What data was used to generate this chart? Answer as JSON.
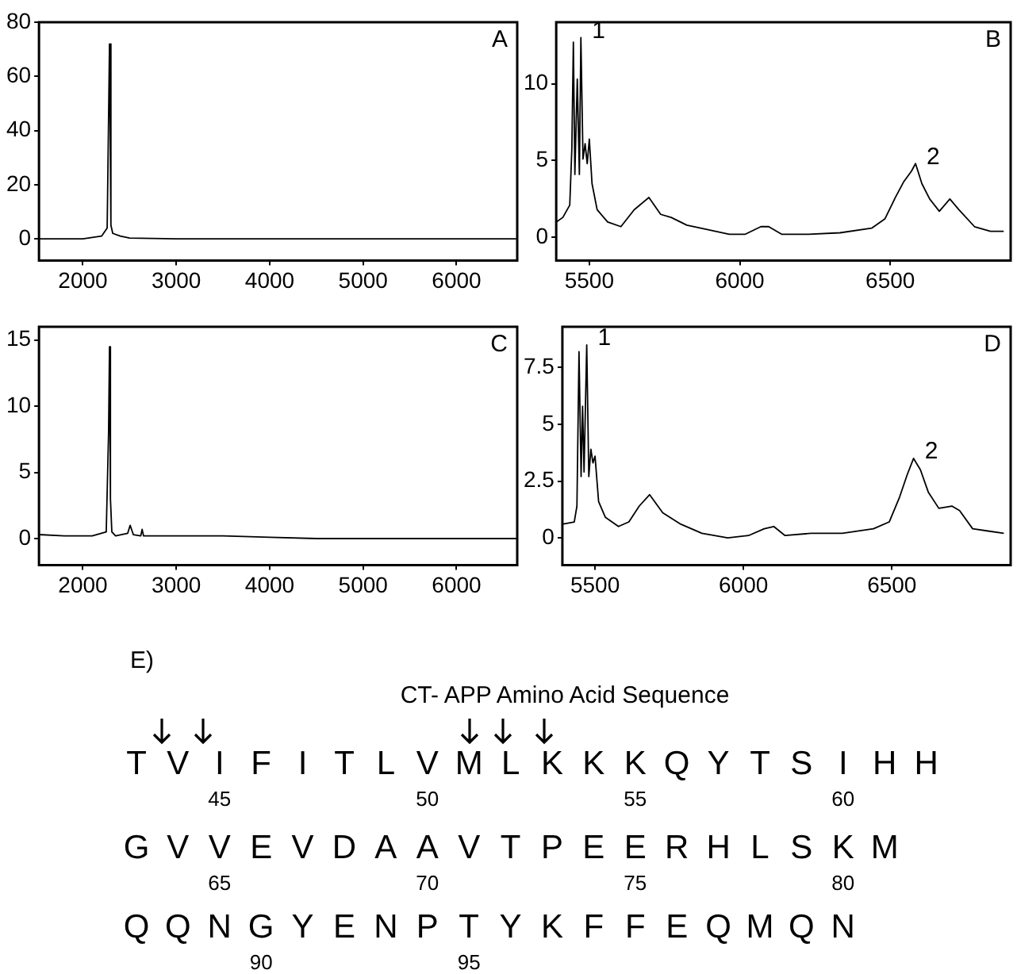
{
  "chart_data": [
    {
      "type": "line",
      "xlim": [
        1530,
        6650
      ],
      "ylim": [
        -8,
        80
      ],
      "xticks": [
        2000,
        3000,
        4000,
        5000,
        6000
      ],
      "yticks": [
        0,
        20,
        40,
        60,
        80
      ],
      "annotations": [
        "A"
      ],
      "series": [
        {
          "color": "#000000",
          "x": [
            1530,
            1800,
            2000,
            2200,
            2260,
            2285,
            2300,
            2320,
            2400,
            2500,
            3000,
            4000,
            5000,
            6000,
            6640
          ],
          "values": [
            0,
            0,
            0,
            1,
            4,
            72,
            5,
            2,
            1,
            0.3,
            0,
            0,
            0,
            0,
            0
          ]
        }
      ]
    },
    {
      "type": "line",
      "xlim": [
        5390,
        6900
      ],
      "ylim": [
        -1.5,
        14
      ],
      "xticks": [
        5500,
        6000,
        6500
      ],
      "yticks": [
        0,
        5,
        10
      ],
      "annotations": [
        "B",
        {
          "text": "1",
          "x": 5472,
          "y": 13
        },
        {
          "text": "2",
          "x": 6584,
          "y": 4.8
        }
      ],
      "series": [
        {
          "color": "#000000",
          "x": [
            5390,
            5412,
            5435,
            5442,
            5447,
            5452,
            5460,
            5467,
            5472,
            5479,
            5486,
            5493,
            5500,
            5509,
            5526,
            5561,
            5605,
            5649,
            5698,
            5737,
            5772,
            5824,
            5895,
            5965,
            6017,
            6070,
            6096,
            6140,
            6228,
            6333,
            6438,
            6482,
            6517,
            6544,
            6570,
            6584,
            6605,
            6631,
            6663,
            6698,
            6728,
            6780,
            6833,
            6877
          ],
          "values": [
            1.0,
            1.3,
            2.1,
            5.8,
            12.7,
            4.1,
            10.3,
            4.1,
            13,
            5.1,
            6.1,
            4.8,
            6.4,
            3.5,
            1.8,
            1.0,
            0.7,
            1.8,
            2.6,
            1.5,
            1.3,
            0.8,
            0.5,
            0.2,
            0.2,
            0.7,
            0.7,
            0.2,
            0.2,
            0.3,
            0.6,
            1.2,
            2.6,
            3.6,
            4.3,
            4.8,
            3.5,
            2.5,
            1.7,
            2.5,
            1.8,
            0.7,
            0.4,
            0.4
          ]
        }
      ]
    },
    {
      "type": "line",
      "xlim": [
        1530,
        6650
      ],
      "ylim": [
        -2,
        16
      ],
      "xticks": [
        2000,
        3000,
        4000,
        5000,
        6000
      ],
      "yticks": [
        0,
        5,
        10,
        15
      ],
      "annotations": [
        "C"
      ],
      "series": [
        {
          "color": "#000000",
          "x": [
            1530,
            1800,
            2100,
            2250,
            2275,
            2285,
            2295,
            2310,
            2350,
            2480,
            2506,
            2540,
            2620,
            2634,
            2650,
            3000,
            3500,
            4000,
            4500,
            6640
          ],
          "values": [
            0.3,
            0.2,
            0.2,
            0.5,
            8,
            14.5,
            3,
            0.5,
            0.2,
            0.4,
            1.0,
            0.3,
            0.2,
            0.7,
            0.2,
            0.2,
            0.2,
            0.1,
            0,
            0
          ]
        }
      ]
    },
    {
      "type": "line",
      "xlim": [
        5390,
        6900
      ],
      "ylim": [
        -1.2,
        9.3
      ],
      "xticks": [
        5500,
        6000,
        6500
      ],
      "yticks": [
        0,
        2.5,
        5,
        7.5
      ],
      "annotations": [
        "D",
        {
          "text": "1",
          "x": 5472,
          "y": 8.5
        },
        {
          "text": "2",
          "x": 6573,
          "y": 3.5
        }
      ],
      "series": [
        {
          "color": "#000000",
          "x": [
            5390,
            5430,
            5439,
            5446,
            5453,
            5458,
            5463,
            5472,
            5479,
            5486,
            5493,
            5500,
            5512,
            5535,
            5579,
            5614,
            5649,
            5684,
            5728,
            5789,
            5860,
            5947,
            6017,
            6070,
            6102,
            6140,
            6228,
            6333,
            6438,
            6491,
            6526,
            6552,
            6573,
            6596,
            6623,
            6658,
            6702,
            6728,
            6772,
            6824,
            6877
          ],
          "values": [
            0.6,
            0.7,
            1.4,
            8.2,
            2.7,
            5.8,
            2.9,
            8.5,
            2.7,
            3.9,
            3.3,
            3.6,
            1.6,
            0.9,
            0.5,
            0.7,
            1.4,
            1.9,
            1.1,
            0.6,
            0.2,
            0.0,
            0.1,
            0.4,
            0.5,
            0.1,
            0.2,
            0.2,
            0.4,
            0.7,
            1.8,
            2.8,
            3.5,
            3.0,
            2.0,
            1.3,
            1.4,
            1.2,
            0.4,
            0.3,
            0.2
          ]
        }
      ]
    },
    {
      "type": "other",
      "title": "CT- APP Amino Acid Sequence",
      "annotations": [
        "E)",
        "T V I F I T L V M L K K K Q Y T S I H H",
        "45 50 55 60",
        "G V V E V D A A V T P E E R H L S K M",
        "65 70 75 80",
        "Q Q N G Y E N P T Y K F F E Q M Q N",
        "90 95"
      ]
    }
  ]
}
